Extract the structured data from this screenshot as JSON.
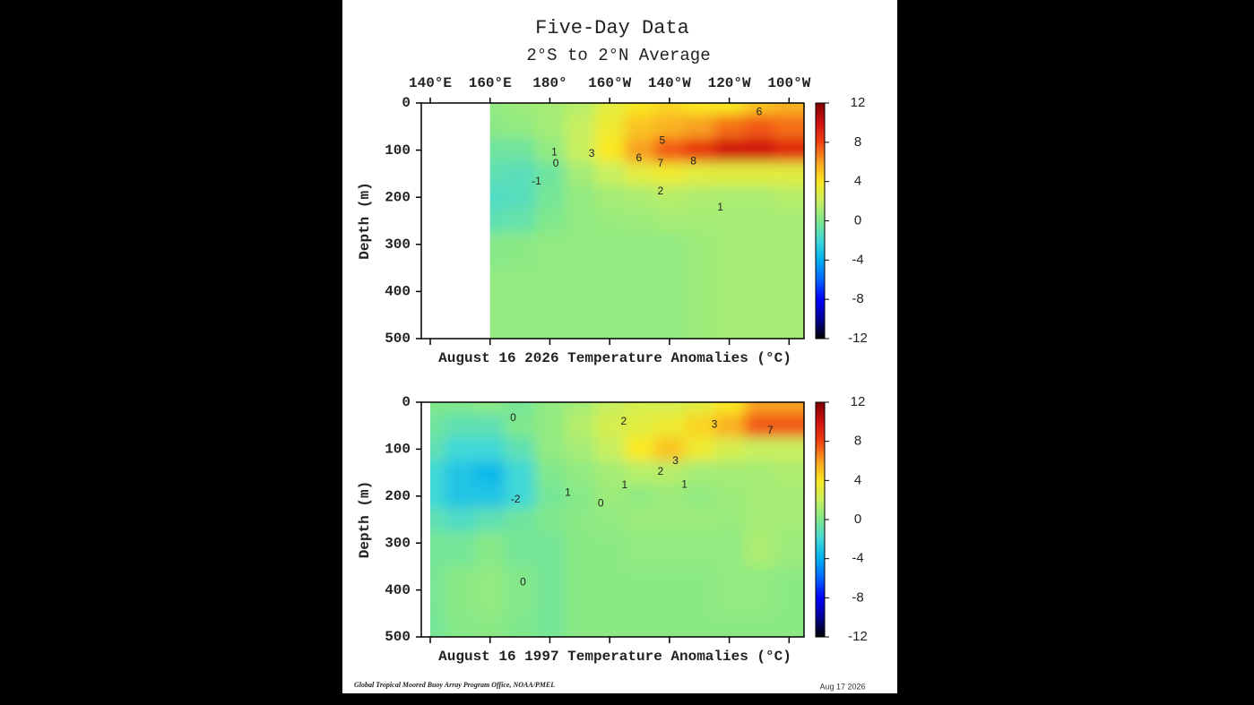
{
  "header": {
    "title": "Five-Day Data",
    "subtitle": "2°S to 2°N Average"
  },
  "footer": {
    "credit": "Global Tropical Moored Buoy Array Program Office, NOAA/PMEL",
    "date": "Aug 17 2026"
  },
  "chart_data": [
    {
      "type": "contour",
      "xlabel": "August 16 2026 Temperature Anomalies (°C)",
      "ylabel": "Depth (m)",
      "x": [
        140,
        150,
        160,
        170,
        180,
        190,
        200,
        210,
        220,
        230,
        240,
        250,
        260
      ],
      "y": [
        0,
        50,
        100,
        150,
        200,
        250,
        300,
        400,
        500
      ],
      "z": [
        [
          null,
          null,
          0.5,
          0.8,
          1,
          1.5,
          3,
          4,
          4.5,
          4,
          4,
          5,
          5.5
        ],
        [
          null,
          null,
          0.3,
          0.5,
          1,
          2,
          3.5,
          5,
          5.5,
          6,
          7,
          7.5,
          7
        ],
        [
          null,
          null,
          -0.5,
          -0.5,
          0.5,
          2,
          4,
          6,
          7.5,
          8.5,
          10,
          10,
          9
        ],
        [
          null,
          null,
          -1,
          -1.2,
          -0.5,
          1,
          2,
          3,
          3.5,
          3,
          3,
          3,
          3
        ],
        [
          null,
          null,
          -1.5,
          -1.3,
          -0.3,
          0.5,
          1,
          1.2,
          1.5,
          1.3,
          1.2,
          1.2,
          1.5
        ],
        [
          null,
          null,
          -1,
          -0.8,
          0,
          0.5,
          0.7,
          0.8,
          1,
          1,
          1,
          1,
          1
        ],
        [
          null,
          null,
          0.2,
          0.3,
          0.5,
          0.5,
          0.5,
          0.5,
          0.5,
          0.8,
          1,
          1,
          1
        ],
        [
          null,
          null,
          0.5,
          0.5,
          0.5,
          0.5,
          0.5,
          0.5,
          0.5,
          0.8,
          1,
          1,
          1
        ],
        [
          null,
          null,
          0.5,
          0.5,
          0.5,
          0.5,
          0.5,
          0.5,
          0.5,
          0.8,
          1,
          1,
          1
        ]
      ],
      "xlim": [
        137,
        265
      ],
      "ylim": [
        0,
        500
      ],
      "y_inverted": true,
      "xticks": [
        {
          "value": 140,
          "label": "140°E"
        },
        {
          "value": 160,
          "label": "160°E"
        },
        {
          "value": 180,
          "label": "180°"
        },
        {
          "value": 200,
          "label": "160°W"
        },
        {
          "value": 220,
          "label": "140°W"
        },
        {
          "value": 240,
          "label": "120°W"
        },
        {
          "value": 260,
          "label": "100°W"
        }
      ],
      "xtick_labels": true,
      "yticks": [
        0,
        100,
        200,
        300,
        400,
        500
      ],
      "zlim": [
        -12,
        12
      ],
      "zticks": [
        -12,
        -8,
        -4,
        0,
        4,
        8,
        12
      ],
      "contour_labels": [
        {
          "value": 6,
          "x": 250,
          "y": 20
        },
        {
          "value": 5,
          "x": 217.6,
          "y": 80
        },
        {
          "value": 6,
          "x": 209.8,
          "y": 118
        },
        {
          "value": 7,
          "x": 217,
          "y": 129
        },
        {
          "value": 8,
          "x": 228,
          "y": 124
        },
        {
          "value": 3,
          "x": 194,
          "y": 108
        },
        {
          "value": 1,
          "x": 181.5,
          "y": 105
        },
        {
          "value": 0,
          "x": 182,
          "y": 129
        },
        {
          "value": -1,
          "x": 175.5,
          "y": 167
        },
        {
          "value": 2,
          "x": 217,
          "y": 188
        },
        {
          "value": 1,
          "x": 237,
          "y": 222
        }
      ]
    },
    {
      "type": "contour",
      "xlabel": "August 16 1997 Temperature Anomalies (°C)",
      "ylabel": "Depth (m)",
      "x": [
        140,
        150,
        160,
        170,
        180,
        190,
        200,
        210,
        220,
        230,
        240,
        250,
        260
      ],
      "y": [
        0,
        50,
        100,
        150,
        200,
        250,
        300,
        400,
        500
      ],
      "z": [
        [
          0,
          0,
          0.3,
          -0.3,
          0.5,
          1,
          2,
          2.5,
          2.5,
          3,
          4,
          6,
          6
        ],
        [
          -0.5,
          -1,
          -1,
          0,
          0.5,
          1.5,
          2.5,
          3,
          3.5,
          4.5,
          5.5,
          7.5,
          7.5
        ],
        [
          -1,
          -2,
          -2,
          -1,
          0.5,
          1,
          2,
          4,
          5,
          3.5,
          2.5,
          2,
          2
        ],
        [
          -2,
          -3,
          -3.5,
          -2,
          0,
          0.5,
          1,
          1.5,
          1.5,
          1,
          1,
          1,
          1.3
        ],
        [
          -2,
          -3,
          -3,
          -2,
          -0.3,
          0.2,
          0.8,
          0.5,
          0.8,
          0.5,
          0.8,
          1,
          1
        ],
        [
          -1,
          -1.5,
          -1,
          -0.5,
          0,
          0.3,
          0.5,
          0.8,
          0.8,
          0.8,
          0.7,
          1,
          1
        ],
        [
          -0.3,
          -0.3,
          0.2,
          -0.3,
          -0.3,
          0.3,
          0.3,
          0.5,
          0.5,
          0.5,
          0.5,
          1.2,
          0.8
        ],
        [
          -0.2,
          0.3,
          0.5,
          0.1,
          -0.3,
          0.3,
          0.3,
          0.3,
          0.3,
          0.3,
          0.5,
          0.5,
          0.3
        ],
        [
          -0.3,
          0.2,
          0.3,
          0,
          -0.3,
          0.3,
          0.3,
          0.3,
          0.3,
          0.3,
          0.3,
          0.3,
          0.3
        ]
      ],
      "xlim": [
        137,
        265
      ],
      "ylim": [
        0,
        500
      ],
      "y_inverted": true,
      "xticks": [
        140,
        160,
        180,
        200,
        220,
        240,
        260
      ],
      "xtick_labels": false,
      "yticks": [
        0,
        100,
        200,
        300,
        400,
        500
      ],
      "zlim": [
        -12,
        12
      ],
      "zticks": [
        -12,
        -8,
        -4,
        0,
        4,
        8,
        12
      ],
      "contour_labels": [
        {
          "value": 0,
          "x": 167.7,
          "y": 34
        },
        {
          "value": 2,
          "x": 204.7,
          "y": 42
        },
        {
          "value": 3,
          "x": 235,
          "y": 48
        },
        {
          "value": 7,
          "x": 253.7,
          "y": 61
        },
        {
          "value": 3,
          "x": 222,
          "y": 126
        },
        {
          "value": 2,
          "x": 217,
          "y": 149
        },
        {
          "value": 1,
          "x": 225,
          "y": 176
        },
        {
          "value": 1,
          "x": 205,
          "y": 177
        },
        {
          "value": 1,
          "x": 186,
          "y": 193
        },
        {
          "value": 0,
          "x": 197,
          "y": 216
        },
        {
          "value": -2,
          "x": 168.5,
          "y": 208
        },
        {
          "value": 0,
          "x": 171,
          "y": 384
        }
      ]
    }
  ]
}
